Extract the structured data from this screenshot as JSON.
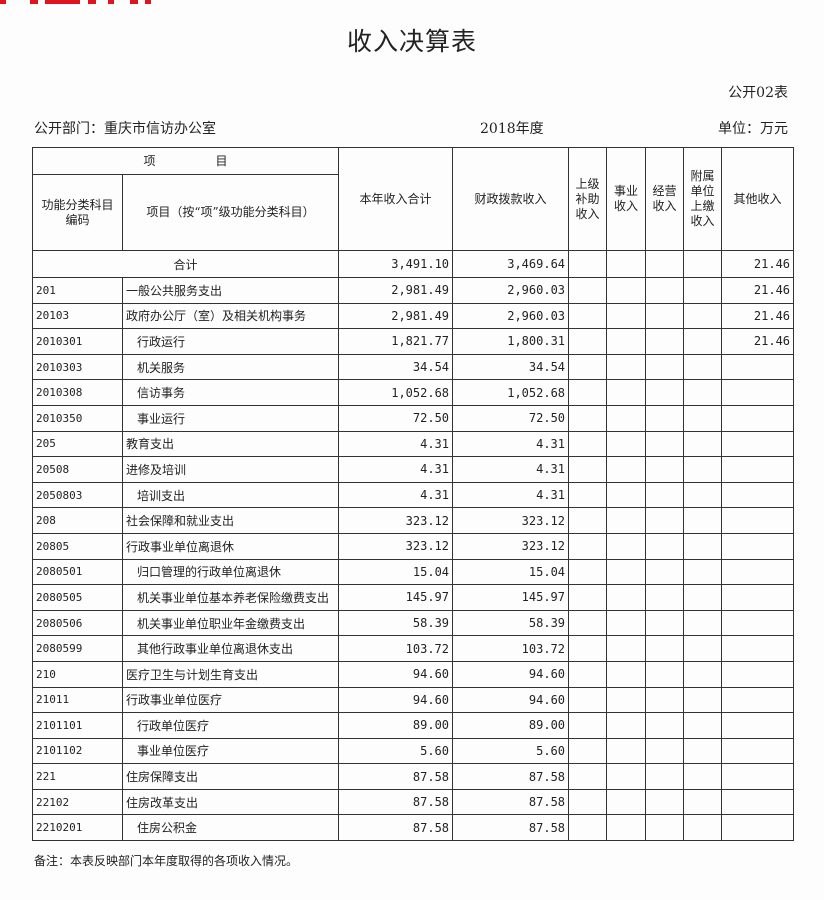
{
  "title": "收入决算表",
  "form_no": "公开02表",
  "department": "公开部门：重庆市信访办公室",
  "year": "2018年度",
  "unit": "单位：万元",
  "headers": {
    "item_group": "项　　　　　目",
    "code": "功能分类科目编码",
    "name": "项目（按“项”级功能分类科目）",
    "total": "本年收入合计",
    "fiscal": "财政拨款收入",
    "superior": "上级补助收入",
    "business": "事业收入",
    "operating": "经营收入",
    "affiliated": "附属单位上缴收入",
    "other": "其他收入"
  },
  "total_row": {
    "label": "合计",
    "total": "3,491.10",
    "fiscal": "3,469.64",
    "other": "21.46"
  },
  "rows": [
    {
      "code": "201",
      "name": "一般公共服务支出",
      "level": 1,
      "total": "2,981.49",
      "fiscal": "2,960.03",
      "other": "21.46"
    },
    {
      "code": "20103",
      "name": "政府办公厅（室）及相关机构事务",
      "level": 2,
      "total": "2,981.49",
      "fiscal": "2,960.03",
      "other": "21.46"
    },
    {
      "code": "2010301",
      "name": "行政运行",
      "level": 3,
      "total": "1,821.77",
      "fiscal": "1,800.31",
      "other": "21.46"
    },
    {
      "code": "2010303",
      "name": "机关服务",
      "level": 3,
      "total": "34.54",
      "fiscal": "34.54",
      "other": ""
    },
    {
      "code": "2010308",
      "name": "信访事务",
      "level": 3,
      "total": "1,052.68",
      "fiscal": "1,052.68",
      "other": ""
    },
    {
      "code": "2010350",
      "name": "事业运行",
      "level": 3,
      "total": "72.50",
      "fiscal": "72.50",
      "other": ""
    },
    {
      "code": "205",
      "name": "教育支出",
      "level": 1,
      "total": "4.31",
      "fiscal": "4.31",
      "other": ""
    },
    {
      "code": "20508",
      "name": "进修及培训",
      "level": 2,
      "total": "4.31",
      "fiscal": "4.31",
      "other": ""
    },
    {
      "code": "2050803",
      "name": "培训支出",
      "level": 3,
      "total": "4.31",
      "fiscal": "4.31",
      "other": ""
    },
    {
      "code": "208",
      "name": "社会保障和就业支出",
      "level": 1,
      "total": "323.12",
      "fiscal": "323.12",
      "other": ""
    },
    {
      "code": "20805",
      "name": "行政事业单位离退休",
      "level": 2,
      "total": "323.12",
      "fiscal": "323.12",
      "other": ""
    },
    {
      "code": "2080501",
      "name": "归口管理的行政单位离退休",
      "level": 3,
      "total": "15.04",
      "fiscal": "15.04",
      "other": ""
    },
    {
      "code": "2080505",
      "name": "机关事业单位基本养老保险缴费支出",
      "level": 3,
      "total": "145.97",
      "fiscal": "145.97",
      "other": ""
    },
    {
      "code": "2080506",
      "name": "机关事业单位职业年金缴费支出",
      "level": 3,
      "total": "58.39",
      "fiscal": "58.39",
      "other": ""
    },
    {
      "code": "2080599",
      "name": "其他行政事业单位离退休支出",
      "level": 3,
      "total": "103.72",
      "fiscal": "103.72",
      "other": ""
    },
    {
      "code": "210",
      "name": "医疗卫生与计划生育支出",
      "level": 1,
      "total": "94.60",
      "fiscal": "94.60",
      "other": ""
    },
    {
      "code": "21011",
      "name": "行政事业单位医疗",
      "level": 2,
      "total": "94.60",
      "fiscal": "94.60",
      "other": ""
    },
    {
      "code": "2101101",
      "name": "行政单位医疗",
      "level": 3,
      "total": "89.00",
      "fiscal": "89.00",
      "other": ""
    },
    {
      "code": "2101102",
      "name": "事业单位医疗",
      "level": 3,
      "total": "5.60",
      "fiscal": "5.60",
      "other": ""
    },
    {
      "code": "221",
      "name": "住房保障支出",
      "level": 1,
      "total": "87.58",
      "fiscal": "87.58",
      "other": ""
    },
    {
      "code": "22102",
      "name": "住房改革支出",
      "level": 2,
      "total": "87.58",
      "fiscal": "87.58",
      "other": ""
    },
    {
      "code": "2210201",
      "name": "住房公积金",
      "level": 3,
      "total": "87.58",
      "fiscal": "87.58",
      "other": ""
    }
  ],
  "note": "备注：本表反映部门本年度取得的各项收入情况。",
  "colors": {
    "stamp_red": "#e0141e",
    "ink": "#222222"
  }
}
